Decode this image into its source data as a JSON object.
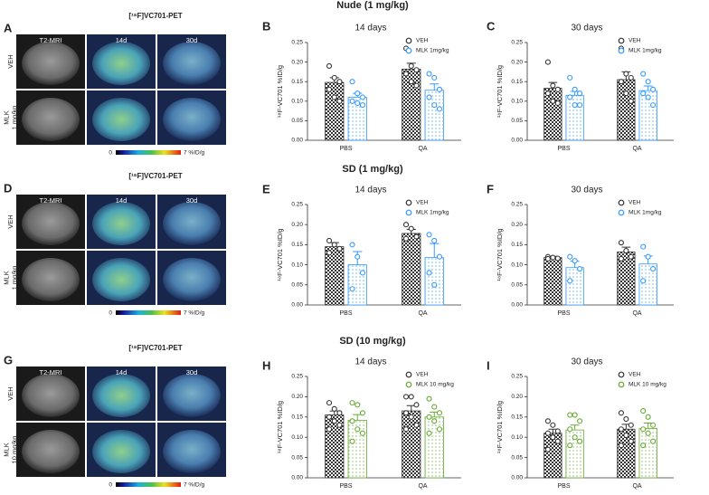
{
  "sections": [
    {
      "title": "Nude (1 mg/kg)",
      "image_panel": {
        "letter": "A",
        "header": "[¹⁸F]VC701-PET",
        "columns": [
          "T2-MRI",
          "14d",
          "30d"
        ],
        "rows": [
          [
            "VEH"
          ],
          [
            "MLK",
            "1 mg/kg"
          ]
        ],
        "colorbar": [
          "0",
          "7 %ID/g"
        ]
      }
    },
    {
      "title": "SD (1 mg/kg)",
      "image_panel": {
        "letter": "D",
        "header": "[¹⁸F]VC701-PET",
        "columns": [
          "T2-MRI",
          "14d",
          "30d"
        ],
        "rows": [
          [
            "VEH"
          ],
          [
            "MLK",
            "1 mg/kg"
          ]
        ],
        "colorbar": [
          "0",
          "7 %ID/g"
        ]
      }
    },
    {
      "title": "SD (10 mg/kg)",
      "image_panel": {
        "letter": "G",
        "header": "[¹⁸F]VC701-PET",
        "columns": [
          "T2-MRI",
          "14d",
          "30d"
        ],
        "rows": [
          [
            "VEH"
          ],
          [
            "MLK",
            "10 mg/kg"
          ]
        ],
        "colorbar": [
          "0",
          "7 %ID/g"
        ]
      }
    }
  ],
  "chart_data": [
    {
      "type": "bar",
      "panel": "B",
      "title": "14 days",
      "y_label": "¹⁸F-VC701 %ID/g",
      "categories": [
        "PBS",
        "QA"
      ],
      "ylim": [
        0,
        0.25
      ],
      "yticks": [
        {
          "value": 0,
          "label": "0.00"
        },
        {
          "value": 0.05,
          "label": "0.05"
        },
        {
          "value": 0.1,
          "label": "0.10"
        },
        {
          "value": 0.15,
          "label": "0.15"
        },
        {
          "value": 0.2,
          "label": "0.20"
        },
        {
          "value": 0.25,
          "label": "0.25"
        }
      ],
      "series": [
        {
          "name": "VEH",
          "color": "#333333",
          "values": [
            0.148,
            0.182
          ],
          "errors": [
            0.012,
            0.015
          ],
          "points": [
            [
              0.19,
              0.16,
              0.15,
              0.13,
              0.11,
              0.1
            ],
            [
              0.235,
              0.19,
              0.18,
              0.17,
              0.15,
              0.14
            ]
          ]
        },
        {
          "name": "MLK 1mg/kg",
          "color": "#3399ff",
          "values": [
            0.11,
            0.128
          ],
          "errors": [
            0.01,
            0.016
          ],
          "points": [
            [
              0.15,
              0.12,
              0.11,
              0.1,
              0.095,
              0.09
            ],
            [
              0.17,
              0.16,
              0.13,
              0.11,
              0.09,
              0.08
            ]
          ]
        }
      ]
    },
    {
      "type": "bar",
      "panel": "C",
      "title": "30 days",
      "y_label": "¹⁸F-VC701 %ID/g",
      "categories": [
        "PBS",
        "QA"
      ],
      "ylim": [
        0,
        0.25
      ],
      "yticks": [
        {
          "value": 0,
          "label": "0.00"
        },
        {
          "value": 0.05,
          "label": "0.05"
        },
        {
          "value": 0.1,
          "label": "0.10"
        },
        {
          "value": 0.15,
          "label": "0.15"
        },
        {
          "value": 0.2,
          "label": "0.20"
        },
        {
          "value": 0.25,
          "label": "0.25"
        }
      ],
      "series": [
        {
          "name": "VEH",
          "color": "#333333",
          "values": [
            0.133,
            0.155
          ],
          "errors": [
            0.015,
            0.02
          ],
          "points": [
            [
              0.2,
              0.14,
              0.13,
              0.12,
              0.1,
              0.095
            ],
            [
              0.235,
              0.17,
              0.16,
              0.15,
              0.12,
              0.1
            ]
          ]
        },
        {
          "name": "MLK 1mg/kg",
          "color": "#3399ff",
          "values": [
            0.115,
            0.127
          ],
          "errors": [
            0.01,
            0.012
          ],
          "points": [
            [
              0.16,
              0.13,
              0.12,
              0.11,
              0.09,
              0.09
            ],
            [
              0.17,
              0.15,
              0.13,
              0.12,
              0.11,
              0.09
            ]
          ]
        }
      ]
    },
    {
      "type": "bar",
      "panel": "E",
      "title": "14 days",
      "y_label": "¹⁸F-VC701 %ID/g",
      "categories": [
        "PBS",
        "QA"
      ],
      "ylim": [
        0,
        0.25
      ],
      "yticks": [
        {
          "value": 0,
          "label": "0.00"
        },
        {
          "value": 0.05,
          "label": "0.05"
        },
        {
          "value": 0.1,
          "label": "0.10"
        },
        {
          "value": 0.15,
          "label": "0.15"
        },
        {
          "value": 0.2,
          "label": "0.20"
        },
        {
          "value": 0.25,
          "label": "0.25"
        }
      ],
      "series": [
        {
          "name": "VEH",
          "color": "#333333",
          "values": [
            0.145,
            0.178
          ],
          "errors": [
            0.01,
            0.01
          ],
          "points": [
            [
              0.16,
              0.15,
              0.14,
              0.13
            ],
            [
              0.2,
              0.19,
              0.17,
              0.165
            ]
          ]
        },
        {
          "name": "MLK 1mg/kg",
          "color": "#3399ff",
          "values": [
            0.1,
            0.118
          ],
          "errors": [
            0.033,
            0.035
          ],
          "points": [
            [
              0.15,
              0.12,
              0.08,
              0.04
            ],
            [
              0.175,
              0.16,
              0.12,
              0.08,
              0.05
            ]
          ]
        }
      ]
    },
    {
      "type": "bar",
      "panel": "F",
      "title": "30 days",
      "y_label": "¹⁸F-VC701 %ID/g",
      "categories": [
        "PBS",
        "QA"
      ],
      "ylim": [
        0,
        0.25
      ],
      "yticks": [
        {
          "value": 0,
          "label": "0.00"
        },
        {
          "value": 0.05,
          "label": "0.05"
        },
        {
          "value": 0.1,
          "label": "0.10"
        },
        {
          "value": 0.15,
          "label": "0.15"
        },
        {
          "value": 0.2,
          "label": "0.20"
        },
        {
          "value": 0.25,
          "label": "0.25"
        }
      ],
      "series": [
        {
          "name": "VEH",
          "color": "#333333",
          "values": [
            0.118,
            0.132
          ],
          "errors": [
            0.003,
            0.012
          ],
          "points": [
            [
              0.12,
              0.118,
              0.116,
              0.115
            ],
            [
              0.155,
              0.135,
              0.12,
              0.115
            ]
          ]
        },
        {
          "name": "MLK 1mg/kg",
          "color": "#3399ff",
          "values": [
            0.093,
            0.102
          ],
          "errors": [
            0.016,
            0.02
          ],
          "points": [
            [
              0.12,
              0.11,
              0.09,
              0.06
            ],
            [
              0.145,
              0.12,
              0.09,
              0.06
            ]
          ]
        }
      ]
    },
    {
      "type": "bar",
      "panel": "H",
      "title": "14 days",
      "y_label": "¹⁸F-VC701 %ID/g",
      "categories": [
        "PBS",
        "QA"
      ],
      "ylim": [
        0,
        0.25
      ],
      "yticks": [
        {
          "value": 0,
          "label": "0.00"
        },
        {
          "value": 0.05,
          "label": "0.05"
        },
        {
          "value": 0.1,
          "label": "0.10"
        },
        {
          "value": 0.15,
          "label": "0.15"
        },
        {
          "value": 0.2,
          "label": "0.20"
        },
        {
          "value": 0.25,
          "label": "0.25"
        }
      ],
      "series": [
        {
          "name": "VEH",
          "color": "#333333",
          "values": [
            0.155,
            0.165
          ],
          "errors": [
            0.01,
            0.013
          ],
          "points": [
            [
              0.185,
              0.17,
              0.16,
              0.15,
              0.14,
              0.13,
              0.12
            ],
            [
              0.2,
              0.2,
              0.18,
              0.16,
              0.15,
              0.13,
              0.12
            ]
          ]
        },
        {
          "name": "MLK 10 mg/kg",
          "color": "#66aa33",
          "values": [
            0.142,
            0.15
          ],
          "errors": [
            0.014,
            0.012
          ],
          "points": [
            [
              0.185,
              0.18,
              0.16,
              0.14,
              0.12,
              0.11,
              0.09
            ],
            [
              0.195,
              0.175,
              0.16,
              0.15,
              0.14,
              0.12,
              0.11
            ]
          ]
        }
      ]
    },
    {
      "type": "bar",
      "panel": "I",
      "title": "30 days",
      "y_label": "¹⁸F-VC701 %ID/g",
      "categories": [
        "PBS",
        "QA"
      ],
      "ylim": [
        0,
        0.25
      ],
      "yticks": [
        {
          "value": 0,
          "label": "0.00"
        },
        {
          "value": 0.05,
          "label": "0.05"
        },
        {
          "value": 0.1,
          "label": "0.10"
        },
        {
          "value": 0.15,
          "label": "0.15"
        },
        {
          "value": 0.2,
          "label": "0.20"
        },
        {
          "value": 0.25,
          "label": "0.25"
        }
      ],
      "series": [
        {
          "name": "VEH",
          "color": "#333333",
          "values": [
            0.11,
            0.12
          ],
          "errors": [
            0.01,
            0.012
          ],
          "points": [
            [
              0.14,
              0.13,
              0.115,
              0.11,
              0.1,
              0.09,
              0.07
            ],
            [
              0.16,
              0.145,
              0.13,
              0.12,
              0.105,
              0.09,
              0.08
            ]
          ]
        },
        {
          "name": "MLK 10 mg/kg",
          "color": "#66aa33",
          "values": [
            0.118,
            0.122
          ],
          "errors": [
            0.012,
            0.013
          ],
          "points": [
            [
              0.155,
              0.155,
              0.14,
              0.12,
              0.1,
              0.09,
              0.08
            ],
            [
              0.165,
              0.15,
              0.13,
              0.12,
              0.11,
              0.09,
              0.08
            ]
          ]
        }
      ]
    }
  ]
}
